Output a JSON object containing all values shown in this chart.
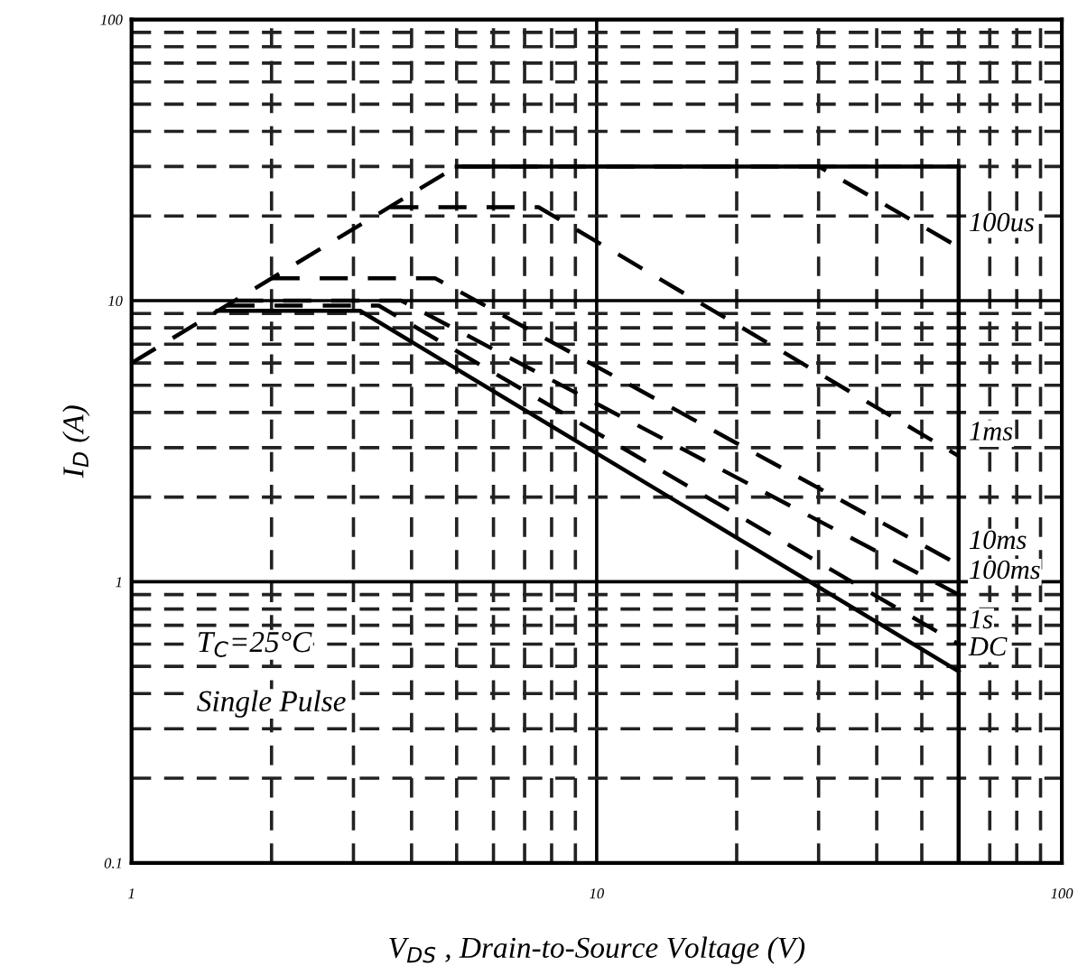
{
  "chart_data": {
    "type": "line",
    "xlabel": "V$_{DS}$ , Drain-to-Source Voltage (V)",
    "ylabel": "I$_{D}$ (A)",
    "log": "xy",
    "grid": true,
    "xlim": [
      1,
      100
    ],
    "ylim": [
      0.1,
      100
    ],
    "xticks": [
      1,
      10,
      100
    ],
    "yticks": [
      0.1,
      1,
      10,
      100
    ],
    "series": [
      {
        "name": "100us",
        "color": "#000000",
        "line_style": "dashed",
        "x": [
          1,
          5,
          30,
          60
        ],
        "values": [
          6,
          30,
          30,
          15.5
        ]
      },
      {
        "name": "1ms",
        "color": "#000000",
        "line_style": "dashed",
        "x": [
          3.6,
          7.5,
          60
        ],
        "values": [
          21.5,
          21.5,
          2.8
        ]
      },
      {
        "name": "10ms",
        "color": "#000000",
        "line_style": "dashed",
        "x": [
          2,
          4.5,
          60
        ],
        "values": [
          12,
          12,
          1.15
        ]
      },
      {
        "name": "100ms",
        "color": "#000000",
        "line_style": "dashed",
        "x": [
          1.67,
          3.8,
          60
        ],
        "values": [
          10,
          10,
          0.9
        ]
      },
      {
        "name": "1s",
        "color": "#000000",
        "line_style": "dashed",
        "x": [
          1.6,
          3.4,
          60
        ],
        "values": [
          9.6,
          9.6,
          0.6
        ]
      },
      {
        "name": "DC",
        "color": "#000000",
        "line_style": "solid",
        "x": [
          1.53,
          3.1,
          60
        ],
        "values": [
          9.2,
          9.2,
          0.48
        ]
      },
      {
        "color": "#000000",
        "line_style": "solid",
        "x": [
          5,
          60,
          60
        ],
        "values": [
          30,
          30,
          0.1
        ]
      }
    ],
    "annotations": [
      "T$_{C}$=25°C",
      "Single Pulse"
    ]
  }
}
